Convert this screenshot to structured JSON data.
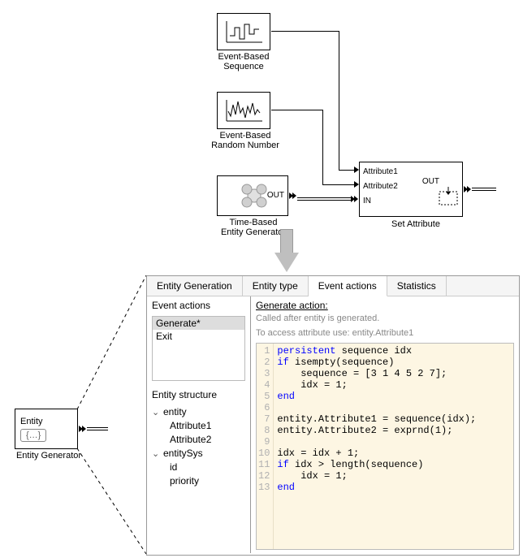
{
  "blocks": {
    "seq": {
      "label": "Event-Based\nSequence"
    },
    "rand": {
      "label": "Event-Based\nRandom Number"
    },
    "timegen": {
      "label": "Time-Based\nEntity Generator",
      "out": "OUT"
    },
    "setattr": {
      "label": "Set Attribute",
      "ports": {
        "a1": "Attribute1",
        "a2": "Attribute2",
        "in": "IN",
        "out": "OUT"
      }
    },
    "unified": {
      "label": "Entity Generator",
      "title": "Entity",
      "icon_text": "{…}"
    }
  },
  "tabs": [
    "Entity Generation",
    "Entity type",
    "Event actions",
    "Statistics"
  ],
  "active_tab": 2,
  "event_actions": {
    "title": "Event actions",
    "items": [
      "Generate*",
      "Exit"
    ],
    "selected": 0
  },
  "entity_structure": {
    "title": "Entity structure",
    "tree": {
      "entity": [
        "Attribute1",
        "Attribute2"
      ],
      "entitySys": [
        "id",
        "priority"
      ]
    }
  },
  "generate_action": {
    "title": "Generate action:",
    "help1": "Called after entity is generated.",
    "help2": "To access attribute use: entity.Attribute1",
    "code_lines": [
      {
        "n": 1,
        "raw": "persistent sequence idx",
        "kw": [
          "persistent"
        ]
      },
      {
        "n": 2,
        "raw": "if isempty(sequence)",
        "kw": [
          "if"
        ]
      },
      {
        "n": 3,
        "raw": "    sequence = [3 1 4 5 2 7];"
      },
      {
        "n": 4,
        "raw": "    idx = 1;"
      },
      {
        "n": 5,
        "raw": "end",
        "kw": [
          "end"
        ]
      },
      {
        "n": 6,
        "raw": ""
      },
      {
        "n": 7,
        "raw": "entity.Attribute1 = sequence(idx);"
      },
      {
        "n": 8,
        "raw": "entity.Attribute2 = exprnd(1);"
      },
      {
        "n": 9,
        "raw": ""
      },
      {
        "n": 10,
        "raw": "idx = idx + 1;"
      },
      {
        "n": 11,
        "raw": "if idx > length(sequence)",
        "kw": [
          "if"
        ]
      },
      {
        "n": 12,
        "raw": "    idx = 1;"
      },
      {
        "n": 13,
        "raw": "end",
        "kw": [
          "end"
        ]
      }
    ]
  },
  "colors": {
    "panel_border": "#999999",
    "code_bg": "#fdf6e3",
    "keyword": "#0000ff",
    "help": "#888888",
    "arrow_fill": "#bfbfbf"
  }
}
